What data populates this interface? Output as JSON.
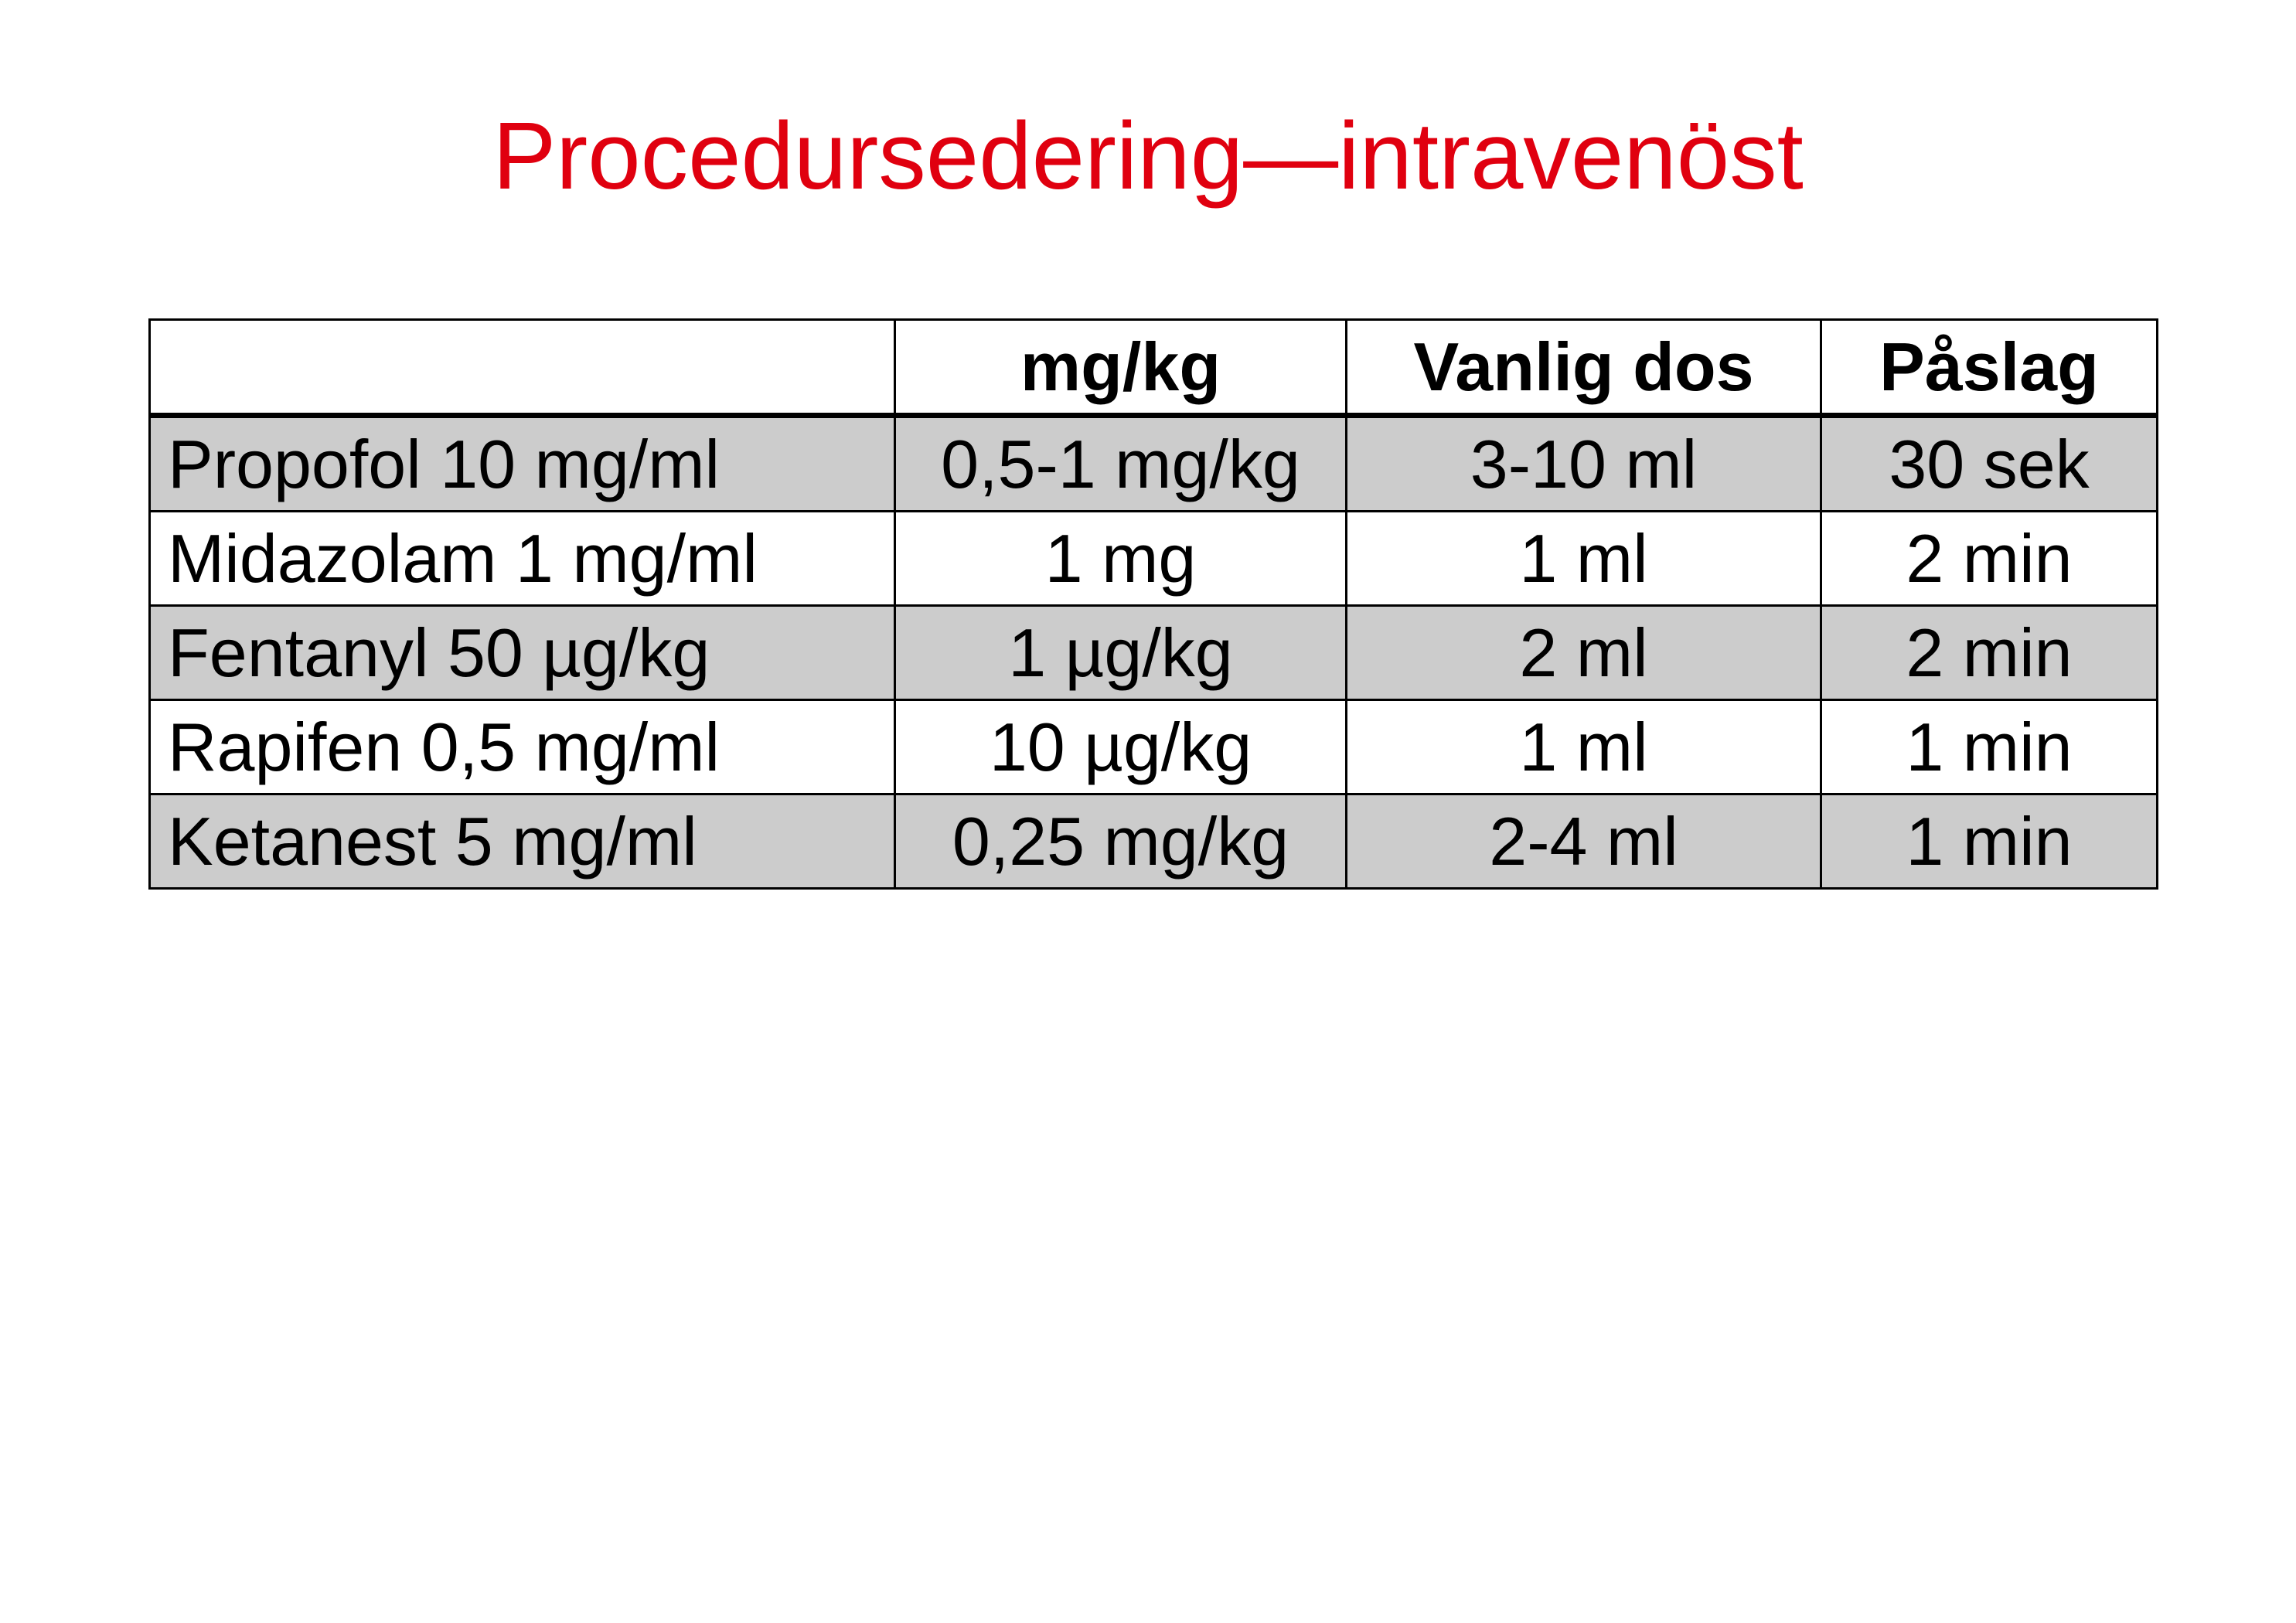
{
  "title": "Procedursedering—intravenöst",
  "table": {
    "headers": [
      "",
      "mg/kg",
      "Vanlig dos",
      "Påslag"
    ],
    "rows": [
      [
        "Propofol 10 mg/ml",
        "0,5-1 mg/kg",
        "3-10 ml",
        "30 sek"
      ],
      [
        "Midazolam 1 mg/ml",
        "1 mg",
        "1 ml",
        "2 min"
      ],
      [
        "Fentanyl 50 µg/kg",
        "1 µg/kg",
        "2 ml",
        "2 min"
      ],
      [
        "Rapifen 0,5 mg/ml",
        "10 µg/kg",
        "1 ml",
        "1 min"
      ],
      [
        "Ketanest 5 mg/ml",
        "0,25 mg/kg",
        "2-4 ml",
        "1 min"
      ]
    ]
  },
  "colors": {
    "title": "#e0000f",
    "shaded_row": "#cccccc",
    "border": "#000000"
  }
}
